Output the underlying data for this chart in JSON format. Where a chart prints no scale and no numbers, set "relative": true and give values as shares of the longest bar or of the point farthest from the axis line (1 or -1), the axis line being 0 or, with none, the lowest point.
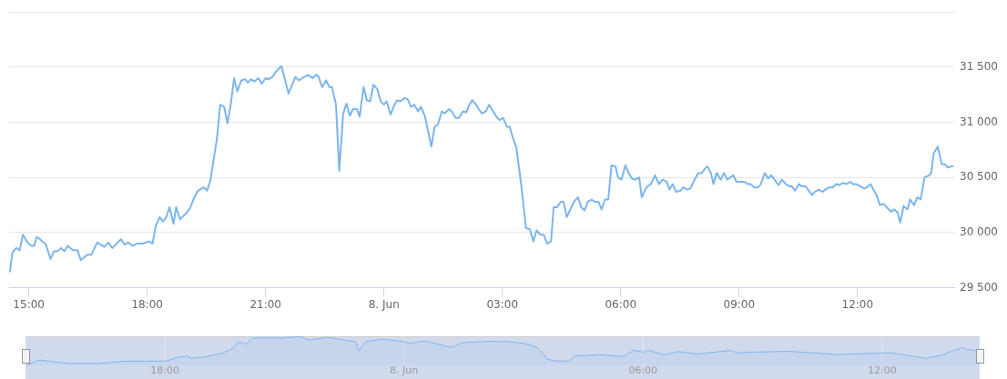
{
  "chart_data": [
    {
      "type": "line",
      "color": "#7cb5ec",
      "grid": "y",
      "xlim": [
        "--06-07T14:30",
        "--06-08T14:27"
      ],
      "ylim": [
        29500,
        32000
      ],
      "xticks": [
        {
          "value": "--06-07T15:00",
          "label": "15:00"
        },
        {
          "value": "--06-07T18:00",
          "label": "18:00"
        },
        {
          "value": "--06-07T21:00",
          "label": "21:00"
        },
        {
          "value": "--06-08T00:00",
          "label": "8. Jun"
        },
        {
          "value": "--06-08T03:00",
          "label": "03:00"
        },
        {
          "value": "--06-08T06:00",
          "label": "06:00"
        },
        {
          "value": "--06-08T09:00",
          "label": "09:00"
        },
        {
          "value": "--06-08T12:00",
          "label": "12:00"
        }
      ],
      "yticks": [
        {
          "value": 29500,
          "label": "29 500"
        },
        {
          "value": 30000,
          "label": "30 000"
        },
        {
          "value": 30500,
          "label": "30 500"
        },
        {
          "value": 31000,
          "label": "31 000"
        },
        {
          "value": 31500,
          "label": "31 500"
        },
        {
          "value": 32000,
          "label": null
        }
      ],
      "x": [
        "--06-07T14:31",
        "--06-07T14:35",
        "--06-07T14:41",
        "--06-07T14:46",
        "--06-07T14:51",
        "--06-07T14:58",
        "--06-07T15:04",
        "--06-07T15:08",
        "--06-07T15:12",
        "--06-07T15:17",
        "--06-07T15:26",
        "--06-07T15:33",
        "--06-07T15:38",
        "--06-07T15:43",
        "--06-07T15:49",
        "--06-07T15:54",
        "--06-07T15:59",
        "--06-07T16:07",
        "--06-07T16:14",
        "--06-07T16:19",
        "--06-07T16:29",
        "--06-07T16:35",
        "--06-07T16:44",
        "--06-07T16:55",
        "--06-07T17:01",
        "--06-07T17:07",
        "--06-07T17:20",
        "--06-07T17:26",
        "--06-07T17:31",
        "--06-07T17:38",
        "--06-07T17:44",
        "--06-07T17:53",
        "--06-07T18:03",
        "--06-07T18:08",
        "--06-07T18:13",
        "--06-07T18:19",
        "--06-07T18:24",
        "--06-07T18:29",
        "--06-07T18:34",
        "--06-07T18:40",
        "--06-07T18:44",
        "--06-07T18:50",
        "--06-07T19:00",
        "--06-07T19:05",
        "--06-07T19:11",
        "--06-07T19:17",
        "--06-07T19:26",
        "--06-07T19:31",
        "--06-07T19:36",
        "--06-07T19:42",
        "--06-07T19:46",
        "--06-07T19:51",
        "--06-07T19:57",
        "--06-07T20:02",
        "--06-07T20:07",
        "--06-07T20:12",
        "--06-07T20:17",
        "--06-07T20:23",
        "--06-07T20:29",
        "--06-07T20:33",
        "--06-07T20:38",
        "--06-07T20:43",
        "--06-07T20:49",
        "--06-07T20:54",
        "--06-07T21:00",
        "--06-07T21:04",
        "--06-07T21:10",
        "--06-07T21:16",
        "--06-07T21:24",
        "--06-07T21:35",
        "--06-07T21:45",
        "--06-07T21:51",
        "--06-07T21:58",
        "--06-07T22:05",
        "--06-07T22:11",
        "--06-07T22:17",
        "--06-07T22:20",
        "--06-07T22:26",
        "--06-07T22:32",
        "--06-07T22:37",
        "--06-07T22:41",
        "--06-07T22:47",
        "--06-07T22:52",
        "--06-07T22:58",
        "--06-07T23:03",
        "--06-07T23:08",
        "--06-07T23:13",
        "--06-07T23:19",
        "--06-07T23:23",
        "--06-07T23:29",
        "--06-07T23:34",
        "--06-07T23:39",
        "--06-07T23:44",
        "--06-07T23:50",
        "--06-07T23:55",
        "--06-08T00:00",
        "--06-08T00:04",
        "--06-08T00:10",
        "--06-08T00:16",
        "--06-08T00:20",
        "--06-08T00:25",
        "--06-08T00:31",
        "--06-08T00:36",
        "--06-08T00:41",
        "--06-08T00:46",
        "--06-08T00:52",
        "--06-08T00:56",
        "--06-08T01:02",
        "--06-08T01:07",
        "--06-08T01:12",
        "--06-08T01:17",
        "--06-08T01:22",
        "--06-08T01:28",
        "--06-08T01:32",
        "--06-08T01:39",
        "--06-08T01:43",
        "--06-08T01:49",
        "--06-08T01:54",
        "--06-08T02:00",
        "--06-08T02:05",
        "--06-08T02:10",
        "--06-08T02:14",
        "--06-08T02:20",
        "--06-08T02:24",
        "--06-08T02:29",
        "--06-08T02:35",
        "--06-08T02:40",
        "--06-08T02:46",
        "--06-08T02:51",
        "--06-08T02:56",
        "--06-08T03:01",
        "--06-08T03:07",
        "--06-08T03:11",
        "--06-08T03:17",
        "--06-08T03:21",
        "--06-08T03:26",
        "--06-08T03:31",
        "--06-08T03:36",
        "--06-08T03:42",
        "--06-08T03:47",
        "--06-08T03:52",
        "--06-08T03:58",
        "--06-08T04:03",
        "--06-08T04:08",
        "--06-08T04:14",
        "--06-08T04:18",
        "--06-08T04:23",
        "--06-08T04:29",
        "--06-08T04:33",
        "--06-08T04:38",
        "--06-08T04:44",
        "--06-08T04:50",
        "--06-08T04:55",
        "--06-08T05:00",
        "--06-08T05:05",
        "--06-08T05:10",
        "--06-08T05:16",
        "--06-08T05:20",
        "--06-08T05:26",
        "--06-08T05:31",
        "--06-08T05:36",
        "--06-08T05:41",
        "--06-08T05:46",
        "--06-08T05:52",
        "--06-08T05:56",
        "--06-08T06:01",
        "--06-08T06:07",
        "--06-08T06:12",
        "--06-08T06:17",
        "--06-08T06:22",
        "--06-08T06:28",
        "--06-08T06:32",
        "--06-08T06:38",
        "--06-08T06:41",
        "--06-08T06:46",
        "--06-08T06:52",
        "--06-08T06:58",
        "--06-08T07:04",
        "--06-08T07:10",
        "--06-08T07:14",
        "--06-08T07:19",
        "--06-08T07:24",
        "--06-08T07:31",
        "--06-08T07:35",
        "--06-08T07:41",
        "--06-08T07:46",
        "--06-08T07:53",
        "--06-08T07:58",
        "--06-08T08:03",
        "--06-08T08:08",
        "--06-08T08:12",
        "--06-08T08:17",
        "--06-08T08:21",
        "--06-08T08:26",
        "--06-08T08:32",
        "--06-08T08:37",
        "--06-08T08:42",
        "--06-08T08:51",
        "--06-08T08:56",
        "--06-08T09:02",
        "--06-08T09:08",
        "--06-08T09:13",
        "--06-08T09:17",
        "--06-08T09:23",
        "--06-08T09:29",
        "--06-08T09:33",
        "--06-08T09:39",
        "--06-08T09:44",
        "--06-08T09:49",
        "--06-08T09:55",
        "--06-08T10:00",
        "--06-08T10:05",
        "--06-08T10:11",
        "--06-08T10:16",
        "--06-08T10:20",
        "--06-08T10:25",
        "--06-08T10:31",
        "--06-08T10:35",
        "--06-08T10:41",
        "--06-08T10:46",
        "--06-08T10:51",
        "--06-08T10:55",
        "--06-08T11:01",
        "--06-08T11:07",
        "--06-08T11:11",
        "--06-08T11:17",
        "--06-08T11:22",
        "--06-08T11:28",
        "--06-08T11:32",
        "--06-08T11:38",
        "--06-08T11:43",
        "--06-08T11:49",
        "--06-08T11:53",
        "--06-08T11:58",
        "--06-08T12:04",
        "--06-08T12:10",
        "--06-08T12:14",
        "--06-08T12:20",
        "--06-08T12:24",
        "--06-08T12:29",
        "--06-08T12:34",
        "--06-08T12:40",
        "--06-08T12:46",
        "--06-08T12:51",
        "--06-08T12:56",
        "--06-08T13:01",
        "--06-08T13:05",
        "--06-08T13:10",
        "--06-08T13:16",
        "--06-08T13:20",
        "--06-08T13:26",
        "--06-08T13:31",
        "--06-08T13:36",
        "--06-08T13:42",
        "--06-08T13:49",
        "--06-08T13:52",
        "--06-08T13:56",
        "--06-08T14:02",
        "--06-08T14:08",
        "--06-08T14:13",
        "--06-08T14:17",
        "--06-08T14:23",
        "--06-08T14:26"
      ],
      "values": [
        29640,
        29820,
        29860,
        29840,
        29980,
        29910,
        29880,
        29880,
        29960,
        29940,
        29890,
        29760,
        29830,
        29830,
        29860,
        29830,
        29880,
        29840,
        29840,
        29750,
        29800,
        29800,
        29910,
        29870,
        29910,
        29860,
        29940,
        29890,
        29910,
        29880,
        29900,
        29900,
        29920,
        29900,
        30060,
        30140,
        30100,
        30140,
        30230,
        30080,
        30230,
        30120,
        30180,
        30220,
        30310,
        30380,
        30410,
        30380,
        30470,
        30700,
        30850,
        31160,
        31140,
        30990,
        31160,
        31400,
        31280,
        31380,
        31390,
        31360,
        31390,
        31370,
        31400,
        31350,
        31400,
        31390,
        31410,
        31460,
        31510,
        31260,
        31410,
        31380,
        31410,
        31430,
        31400,
        31430,
        31420,
        31320,
        31380,
        31320,
        31320,
        31160,
        30560,
        31080,
        31170,
        31060,
        31120,
        31120,
        31050,
        31320,
        31200,
        31190,
        31340,
        31300,
        31190,
        31160,
        31190,
        31070,
        31160,
        31200,
        31190,
        31220,
        31210,
        31140,
        31160,
        31100,
        31140,
        31060,
        30920,
        30780,
        30960,
        30980,
        31100,
        31080,
        31120,
        31100,
        31040,
        31040,
        31100,
        31090,
        31160,
        31200,
        31160,
        31120,
        31080,
        31100,
        31160,
        31100,
        31050,
        31020,
        31040,
        30960,
        30960,
        30840,
        30780,
        30560,
        30310,
        30040,
        30030,
        29920,
        30020,
        29980,
        29980,
        29900,
        29920,
        30230,
        30230,
        30280,
        30280,
        30140,
        30220,
        30290,
        30320,
        30230,
        30200,
        30280,
        30300,
        30280,
        30280,
        30210,
        30300,
        30300,
        30610,
        30600,
        30500,
        30480,
        30610,
        30540,
        30490,
        30480,
        30500,
        30320,
        30400,
        30420,
        30440,
        30520,
        30440,
        30480,
        30460,
        30390,
        30440,
        30370,
        30380,
        30410,
        30390,
        30400,
        30490,
        30540,
        30540,
        30580,
        30600,
        30540,
        30440,
        30540,
        30480,
        30540,
        30480,
        30520,
        30460,
        30460,
        30460,
        30440,
        30440,
        30410,
        30410,
        30440,
        30540,
        30490,
        30520,
        30470,
        30430,
        30480,
        30440,
        30420,
        30420,
        30380,
        30440,
        30420,
        30420,
        30380,
        30340,
        30370,
        30390,
        30370,
        30390,
        30410,
        30410,
        30440,
        30430,
        30450,
        30440,
        30460,
        30440,
        30440,
        30420,
        30400,
        30410,
        30440,
        30390,
        30340,
        30250,
        30260,
        30220,
        30190,
        30210,
        30180,
        30090,
        30240,
        30210,
        30300,
        30250,
        30320,
        30300,
        30500,
        30520,
        30540,
        30720,
        30780,
        30620,
        30620,
        30590,
        30600,
        30600
      ]
    },
    {
      "type": "area",
      "color": "#7cb5ec",
      "grid": "x",
      "tick_labels": "x",
      "relative": true,
      "xlim": [
        "--06-07T14:30",
        "--06-08T14:27"
      ],
      "x": [
        "--06-07T14:31",
        "--06-07T14:51",
        "--06-07T15:33",
        "--06-07T16:19",
        "--06-07T17:01",
        "--06-07T17:53",
        "--06-07T18:03",
        "--06-07T18:19",
        "--06-07T18:34",
        "--06-07T18:40",
        "--06-07T19:00",
        "--06-07T19:26",
        "--06-07T19:42",
        "--06-07T19:51",
        "--06-07T20:02",
        "--06-07T20:12",
        "--06-07T21:00",
        "--06-07T21:24",
        "--06-07T21:35",
        "--06-07T22:05",
        "--06-07T22:47",
        "--06-07T22:52",
        "--06-07T23:03",
        "--06-07T23:29",
        "--06-07T23:55",
        "--06-08T00:10",
        "--06-08T00:31",
        "--06-08T01:12",
        "--06-08T01:28",
        "--06-08T02:10",
        "--06-08T02:40",
        "--06-08T03:01",
        "--06-08T03:21",
        "--06-08T03:36",
        "--06-08T03:47",
        "--06-08T04:08",
        "--06-08T04:18",
        "--06-08T04:55",
        "--06-08T05:31",
        "--06-08T05:46",
        "--06-08T06:01",
        "--06-08T06:07",
        "--06-08T06:32",
        "--06-08T06:52",
        "--06-08T07:24",
        "--06-08T08:12",
        "--06-08T08:21",
        "--06-08T08:42",
        "--06-08T09:39",
        "--06-08T10:51",
        "--06-08T12:14",
        "--06-08T13:05",
        "--06-08T13:31",
        "--06-08T13:42",
        "--06-08T14:02",
        "--06-08T14:08",
        "--06-08T14:26"
      ],
      "values": [
        0,
        0.18,
        0.06,
        0.06,
        0.14,
        0.14,
        0.15,
        0.27,
        0.32,
        0.24,
        0.29,
        0.41,
        0.57,
        0.81,
        0.72,
        0.94,
        0.94,
        1,
        0.87,
        0.96,
        0.81,
        0.49,
        0.82,
        0.9,
        0.83,
        0.76,
        0.84,
        0.61,
        0.78,
        0.83,
        0.81,
        0.75,
        0.61,
        0.21,
        0.15,
        0.14,
        0.32,
        0.36,
        0.3,
        0.52,
        0.45,
        0.52,
        0.36,
        0.47,
        0.39,
        0.51,
        0.43,
        0.45,
        0.48,
        0.37,
        0.43,
        0.24,
        0.35,
        0.46,
        0.61,
        0.53,
        0.51
      ],
      "xticks": [
        {
          "value": "--06-07T18:00",
          "label": "18:00"
        },
        {
          "value": "--06-08T00:00",
          "label": "8. Jun"
        },
        {
          "value": "--06-08T06:00",
          "label": "06:00"
        },
        {
          "value": "--06-08T12:00",
          "label": "12:00"
        }
      ]
    }
  ]
}
